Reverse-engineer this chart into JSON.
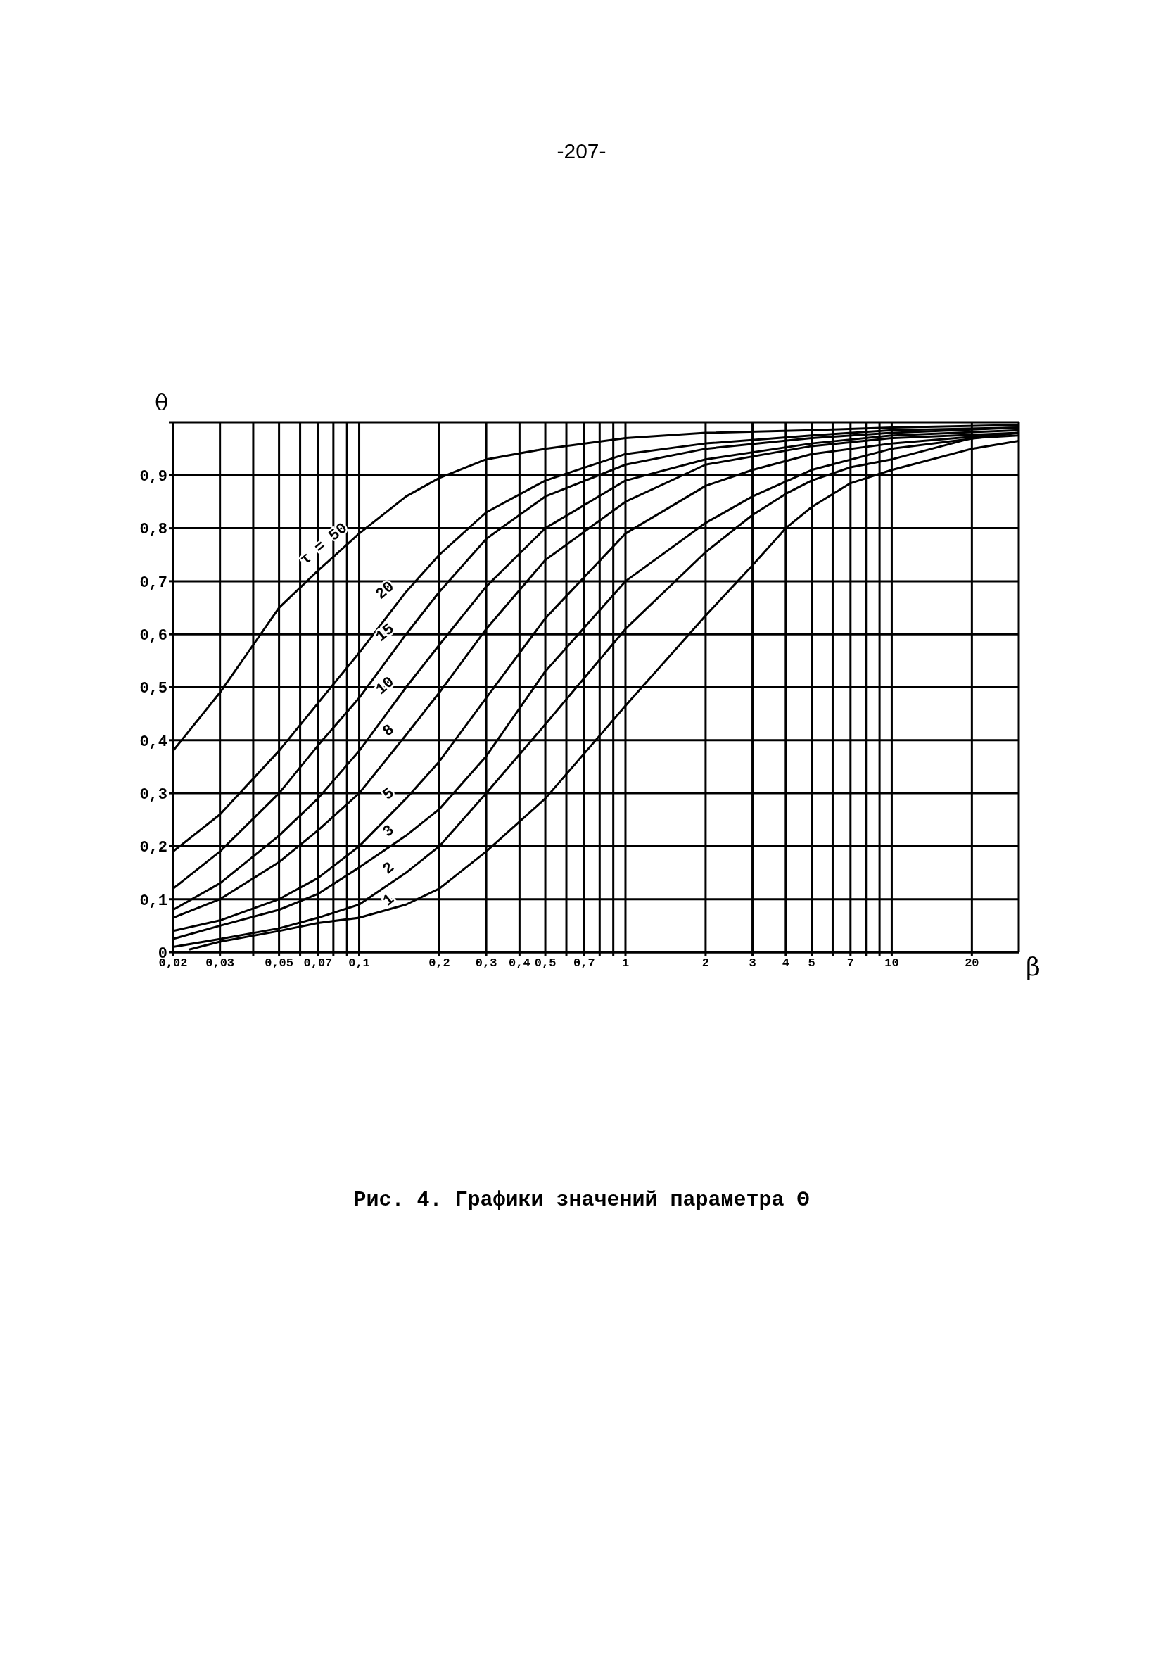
{
  "chart_data": {
    "type": "line",
    "title": "Рис. 4. Графики значений параметра Θ",
    "annotations": [
      "-207-"
    ],
    "xlabel": "β",
    "ylabel": "θ",
    "log": "x",
    "grid": true,
    "legend": false,
    "marker": "none",
    "line_style": "solid",
    "xlim": [
      0.02,
      30
    ],
    "ylim": [
      0,
      1
    ],
    "xticks": [
      {
        "value": 0.02,
        "label": "0,02"
      },
      {
        "value": 0.03,
        "label": "0,03"
      },
      {
        "value": 0.04,
        "label": null
      },
      {
        "value": 0.05,
        "label": "0,05"
      },
      {
        "value": 0.06,
        "label": null
      },
      {
        "value": 0.07,
        "label": "0,07"
      },
      {
        "value": 0.08,
        "label": null
      },
      {
        "value": 0.09,
        "label": null
      },
      {
        "value": 0.1,
        "label": "0,1"
      },
      {
        "value": 0.2,
        "label": "0,2"
      },
      {
        "value": 0.3,
        "label": "0,3"
      },
      {
        "value": 0.4,
        "label": "0,4"
      },
      {
        "value": 0.5,
        "label": "0,5"
      },
      {
        "value": 0.6,
        "label": null
      },
      {
        "value": 0.7,
        "label": "0,7"
      },
      {
        "value": 0.8,
        "label": null
      },
      {
        "value": 0.9,
        "label": null
      },
      1,
      2,
      3,
      4,
      5,
      {
        "value": 6,
        "label": null
      },
      7,
      {
        "value": 8,
        "label": null
      },
      {
        "value": 9,
        "label": null
      },
      10,
      20
    ],
    "yticks": [
      0,
      {
        "value": 0.1,
        "label": "0,1"
      },
      {
        "value": 0.2,
        "label": "0,2"
      },
      {
        "value": 0.3,
        "label": "0,3"
      },
      {
        "value": 0.4,
        "label": "0,4"
      },
      {
        "value": 0.5,
        "label": "0,5"
      },
      {
        "value": 0.6,
        "label": "0,6"
      },
      {
        "value": 0.7,
        "label": "0,7"
      },
      {
        "value": 0.8,
        "label": "0,8"
      },
      {
        "value": 0.9,
        "label": "0,9"
      },
      {
        "value": 1,
        "label": null
      }
    ],
    "series": [
      {
        "name": "τ = 50",
        "color": "#000000",
        "x": [
          0.02,
          0.03,
          0.04,
          0.05,
          0.07,
          0.1,
          0.15,
          0.2,
          0.3,
          0.5,
          1,
          2,
          5,
          10,
          30
        ],
        "values": [
          0.38,
          0.49,
          0.58,
          0.65,
          0.72,
          0.79,
          0.86,
          0.895,
          0.93,
          0.95,
          0.97,
          0.98,
          0.985,
          0.99,
          0.995
        ]
      },
      {
        "name": "20",
        "color": "#000000",
        "x": [
          0.02,
          0.03,
          0.05,
          0.07,
          0.1,
          0.15,
          0.2,
          0.3,
          0.5,
          1,
          2,
          5,
          10,
          30
        ],
        "values": [
          0.19,
          0.26,
          0.38,
          0.47,
          0.565,
          0.68,
          0.75,
          0.83,
          0.89,
          0.94,
          0.96,
          0.975,
          0.985,
          0.99
        ]
      },
      {
        "name": "15",
        "color": "#000000",
        "x": [
          0.02,
          0.03,
          0.05,
          0.07,
          0.1,
          0.15,
          0.2,
          0.3,
          0.5,
          1,
          2,
          5,
          10,
          30
        ],
        "values": [
          0.12,
          0.19,
          0.3,
          0.39,
          0.48,
          0.6,
          0.68,
          0.78,
          0.86,
          0.92,
          0.95,
          0.97,
          0.98,
          0.99
        ]
      },
      {
        "name": "10",
        "color": "#000000",
        "x": [
          0.02,
          0.03,
          0.05,
          0.07,
          0.1,
          0.15,
          0.2,
          0.3,
          0.5,
          1,
          2,
          5,
          10,
          30
        ],
        "values": [
          0.08,
          0.13,
          0.22,
          0.29,
          0.38,
          0.5,
          0.58,
          0.69,
          0.8,
          0.89,
          0.93,
          0.96,
          0.975,
          0.985
        ]
      },
      {
        "name": "8",
        "color": "#000000",
        "x": [
          0.02,
          0.03,
          0.05,
          0.07,
          0.1,
          0.15,
          0.2,
          0.3,
          0.5,
          1,
          2,
          5,
          10,
          30
        ],
        "values": [
          0.065,
          0.1,
          0.17,
          0.23,
          0.3,
          0.41,
          0.49,
          0.61,
          0.74,
          0.85,
          0.92,
          0.955,
          0.97,
          0.98
        ]
      },
      {
        "name": "5",
        "color": "#000000",
        "x": [
          0.02,
          0.03,
          0.05,
          0.07,
          0.1,
          0.15,
          0.2,
          0.3,
          0.5,
          1,
          2,
          3,
          5,
          10,
          30
        ],
        "values": [
          0.04,
          0.06,
          0.1,
          0.14,
          0.2,
          0.29,
          0.36,
          0.48,
          0.63,
          0.79,
          0.88,
          0.91,
          0.94,
          0.96,
          0.98
        ]
      },
      {
        "name": "3",
        "color": "#000000",
        "x": [
          0.02,
          0.03,
          0.05,
          0.07,
          0.1,
          0.15,
          0.2,
          0.3,
          0.5,
          1,
          2,
          3,
          5,
          10,
          30
        ],
        "values": [
          0.025,
          0.05,
          0.08,
          0.11,
          0.16,
          0.22,
          0.27,
          0.37,
          0.53,
          0.7,
          0.81,
          0.86,
          0.91,
          0.95,
          0.98
        ]
      },
      {
        "name": "2",
        "color": "#000000",
        "x": [
          0.02,
          0.03,
          0.05,
          0.07,
          0.1,
          0.15,
          0.2,
          0.3,
          0.5,
          1,
          2,
          3,
          4,
          5,
          7,
          10,
          20,
          30
        ],
        "values": [
          0.01,
          0.025,
          0.045,
          0.065,
          0.09,
          0.15,
          0.2,
          0.3,
          0.43,
          0.61,
          0.755,
          0.825,
          0.865,
          0.89,
          0.915,
          0.93,
          0.97,
          0.975
        ]
      },
      {
        "name": "1",
        "color": "#000000",
        "x": [
          0.023,
          0.03,
          0.05,
          0.07,
          0.1,
          0.15,
          0.2,
          0.3,
          0.5,
          1,
          2,
          3,
          4,
          5,
          7,
          10,
          20,
          30
        ],
        "values": [
          0.005,
          0.02,
          0.04,
          0.055,
          0.065,
          0.09,
          0.12,
          0.19,
          0.29,
          0.465,
          0.635,
          0.73,
          0.8,
          0.84,
          0.885,
          0.91,
          0.95,
          0.965
        ]
      }
    ]
  }
}
